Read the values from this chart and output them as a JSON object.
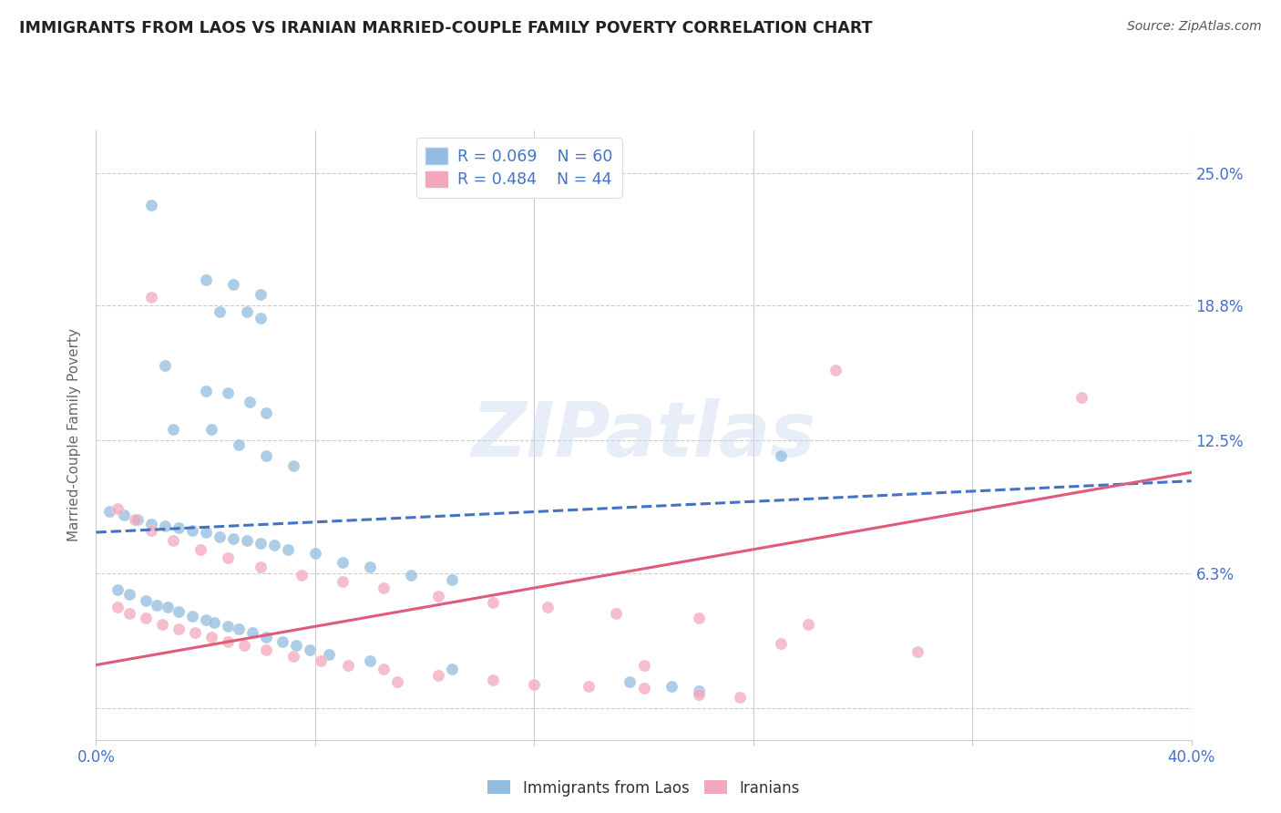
{
  "title": "IMMIGRANTS FROM LAOS VS IRANIAN MARRIED-COUPLE FAMILY POVERTY CORRELATION CHART",
  "source": "Source: ZipAtlas.com",
  "ylabel": "Married-Couple Family Poverty",
  "xlim": [
    0.0,
    0.4
  ],
  "ylim": [
    -0.015,
    0.27
  ],
  "yticks": [
    0.0,
    0.063,
    0.125,
    0.188,
    0.25
  ],
  "ytick_labels": [
    "",
    "6.3%",
    "12.5%",
    "18.8%",
    "25.0%"
  ],
  "xticks": [
    0.0,
    0.08,
    0.16,
    0.24,
    0.32,
    0.4
  ],
  "xtick_labels": [
    "0.0%",
    "",
    "",
    "",
    "",
    "40.0%"
  ],
  "watermark": "ZIPatlas",
  "blue_color": "#92bde0",
  "pink_color": "#f4a7bb",
  "trendline_blue_color": "#4472c4",
  "trendline_pink_color": "#e05a7a",
  "label_color": "#4472c4",
  "axis_label_color": "#666666",
  "background_color": "#ffffff",
  "grid_color": "#cccccc",
  "blue_scatter": [
    [
      0.02,
      0.235
    ],
    [
      0.04,
      0.2
    ],
    [
      0.05,
      0.198
    ],
    [
      0.06,
      0.193
    ],
    [
      0.045,
      0.185
    ],
    [
      0.055,
      0.185
    ],
    [
      0.06,
      0.182
    ],
    [
      0.025,
      0.16
    ],
    [
      0.04,
      0.148
    ],
    [
      0.048,
      0.147
    ],
    [
      0.056,
      0.143
    ],
    [
      0.062,
      0.138
    ],
    [
      0.028,
      0.13
    ],
    [
      0.042,
      0.13
    ],
    [
      0.052,
      0.123
    ],
    [
      0.062,
      0.118
    ],
    [
      0.072,
      0.113
    ],
    [
      0.25,
      0.118
    ],
    [
      0.005,
      0.092
    ],
    [
      0.01,
      0.09
    ],
    [
      0.015,
      0.088
    ],
    [
      0.02,
      0.086
    ],
    [
      0.025,
      0.085
    ],
    [
      0.03,
      0.084
    ],
    [
      0.035,
      0.083
    ],
    [
      0.04,
      0.082
    ],
    [
      0.045,
      0.08
    ],
    [
      0.05,
      0.079
    ],
    [
      0.055,
      0.078
    ],
    [
      0.06,
      0.077
    ],
    [
      0.065,
      0.076
    ],
    [
      0.07,
      0.074
    ],
    [
      0.08,
      0.072
    ],
    [
      0.09,
      0.068
    ],
    [
      0.1,
      0.066
    ],
    [
      0.115,
      0.062
    ],
    [
      0.13,
      0.06
    ],
    [
      0.008,
      0.055
    ],
    [
      0.012,
      0.053
    ],
    [
      0.018,
      0.05
    ],
    [
      0.022,
      0.048
    ],
    [
      0.026,
      0.047
    ],
    [
      0.03,
      0.045
    ],
    [
      0.035,
      0.043
    ],
    [
      0.04,
      0.041
    ],
    [
      0.043,
      0.04
    ],
    [
      0.048,
      0.038
    ],
    [
      0.052,
      0.037
    ],
    [
      0.057,
      0.035
    ],
    [
      0.062,
      0.033
    ],
    [
      0.068,
      0.031
    ],
    [
      0.073,
      0.029
    ],
    [
      0.078,
      0.027
    ],
    [
      0.085,
      0.025
    ],
    [
      0.1,
      0.022
    ],
    [
      0.13,
      0.018
    ],
    [
      0.195,
      0.012
    ],
    [
      0.21,
      0.01
    ],
    [
      0.22,
      0.008
    ]
  ],
  "pink_scatter": [
    [
      0.02,
      0.192
    ],
    [
      0.27,
      0.158
    ],
    [
      0.36,
      0.145
    ],
    [
      0.008,
      0.093
    ],
    [
      0.014,
      0.088
    ],
    [
      0.02,
      0.083
    ],
    [
      0.028,
      0.078
    ],
    [
      0.038,
      0.074
    ],
    [
      0.048,
      0.07
    ],
    [
      0.06,
      0.066
    ],
    [
      0.075,
      0.062
    ],
    [
      0.09,
      0.059
    ],
    [
      0.105,
      0.056
    ],
    [
      0.125,
      0.052
    ],
    [
      0.145,
      0.049
    ],
    [
      0.165,
      0.047
    ],
    [
      0.19,
      0.044
    ],
    [
      0.22,
      0.042
    ],
    [
      0.26,
      0.039
    ],
    [
      0.008,
      0.047
    ],
    [
      0.012,
      0.044
    ],
    [
      0.018,
      0.042
    ],
    [
      0.024,
      0.039
    ],
    [
      0.03,
      0.037
    ],
    [
      0.036,
      0.035
    ],
    [
      0.042,
      0.033
    ],
    [
      0.048,
      0.031
    ],
    [
      0.054,
      0.029
    ],
    [
      0.062,
      0.027
    ],
    [
      0.072,
      0.024
    ],
    [
      0.082,
      0.022
    ],
    [
      0.092,
      0.02
    ],
    [
      0.105,
      0.018
    ],
    [
      0.125,
      0.015
    ],
    [
      0.145,
      0.013
    ],
    [
      0.3,
      0.026
    ],
    [
      0.2,
      0.009
    ],
    [
      0.22,
      0.006
    ],
    [
      0.235,
      0.005
    ],
    [
      0.11,
      0.012
    ],
    [
      0.16,
      0.011
    ],
    [
      0.18,
      0.01
    ],
    [
      0.2,
      0.02
    ],
    [
      0.25,
      0.03
    ]
  ],
  "blue_trend_x": [
    0.0,
    0.4
  ],
  "blue_trend_y": [
    0.082,
    0.106
  ],
  "pink_trend_x": [
    0.0,
    0.4
  ],
  "pink_trend_y": [
    0.02,
    0.11
  ]
}
